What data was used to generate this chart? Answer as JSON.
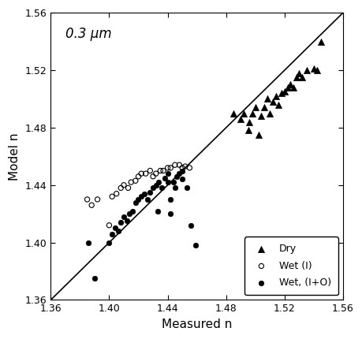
{
  "xlim": [
    1.36,
    1.56
  ],
  "ylim": [
    1.36,
    1.56
  ],
  "xticks": [
    1.36,
    1.4,
    1.44,
    1.48,
    1.52,
    1.56
  ],
  "yticks": [
    1.36,
    1.4,
    1.44,
    1.48,
    1.52,
    1.56
  ],
  "xlabel": "Measured n",
  "ylabel": "Model n",
  "annotation": "0.3 μm",
  "annotation_style": "italic",
  "dry_x": [
    1.485,
    1.49,
    1.492,
    1.495,
    1.496,
    1.498,
    1.5,
    1.502,
    1.504,
    1.506,
    1.508,
    1.51,
    1.512,
    1.514,
    1.516,
    1.518,
    1.52,
    1.522,
    1.524,
    1.526,
    1.528,
    1.53,
    1.532,
    1.535,
    1.54,
    1.542,
    1.545
  ],
  "dry_y": [
    1.49,
    1.486,
    1.49,
    1.478,
    1.484,
    1.49,
    1.494,
    1.475,
    1.488,
    1.494,
    1.5,
    1.49,
    1.498,
    1.502,
    1.496,
    1.504,
    1.505,
    1.508,
    1.51,
    1.508,
    1.515,
    1.518,
    1.515,
    1.52,
    1.521,
    1.52,
    1.54
  ],
  "wet_i_x": [
    1.385,
    1.388,
    1.392,
    1.4,
    1.402,
    1.405,
    1.408,
    1.41,
    1.413,
    1.415,
    1.418,
    1.42,
    1.422,
    1.425,
    1.428,
    1.43,
    1.432,
    1.435,
    1.437,
    1.44,
    1.442,
    1.445,
    1.448,
    1.45,
    1.452,
    1.455
  ],
  "wet_i_y": [
    1.43,
    1.426,
    1.43,
    1.412,
    1.432,
    1.434,
    1.438,
    1.44,
    1.438,
    1.442,
    1.443,
    1.446,
    1.448,
    1.448,
    1.45,
    1.446,
    1.448,
    1.45,
    1.45,
    1.452,
    1.452,
    1.454,
    1.454,
    1.452,
    1.453,
    1.452
  ],
  "wet_io_x": [
    1.386,
    1.39,
    1.4,
    1.402,
    1.404,
    1.406,
    1.408,
    1.41,
    1.412,
    1.414,
    1.416,
    1.418,
    1.42,
    1.422,
    1.424,
    1.426,
    1.428,
    1.43,
    1.432,
    1.433,
    1.434,
    1.436,
    1.438,
    1.44,
    1.442,
    1.444,
    1.446,
    1.448,
    1.45,
    1.453,
    1.456,
    1.459,
    1.44,
    1.442,
    1.445,
    1.45
  ],
  "wet_io_y": [
    1.4,
    1.375,
    1.4,
    1.406,
    1.41,
    1.408,
    1.414,
    1.418,
    1.415,
    1.42,
    1.422,
    1.428,
    1.43,
    1.432,
    1.434,
    1.43,
    1.435,
    1.438,
    1.44,
    1.422,
    1.442,
    1.438,
    1.445,
    1.442,
    1.43,
    1.442,
    1.446,
    1.448,
    1.45,
    1.438,
    1.412,
    1.398,
    1.448,
    1.42,
    1.438,
    1.444
  ],
  "line_color": "#000000",
  "dry_color": "#000000",
  "wet_i_color": "#000000",
  "wet_io_color": "#000000",
  "background_color": "#ffffff",
  "marker_size_dry": 34,
  "marker_size_wet_i": 20,
  "marker_size_wet_io": 22
}
